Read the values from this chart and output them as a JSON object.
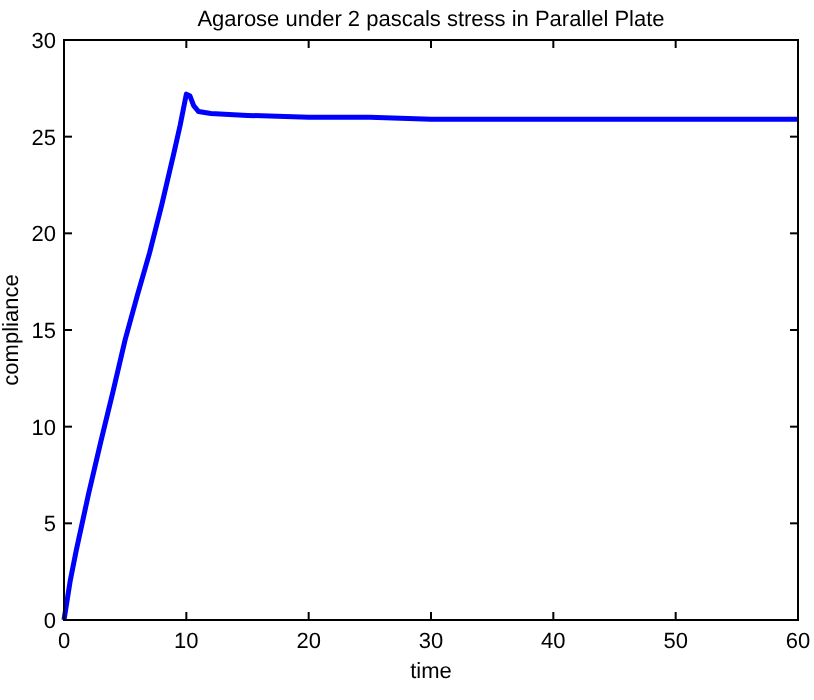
{
  "chart_data": {
    "type": "line",
    "title": "Agarose under 2 pascals stress in Parallel Plate",
    "xlabel": "time",
    "ylabel": "compliance",
    "x": [
      0,
      0.5,
      1,
      2,
      3,
      4,
      5,
      6,
      7,
      8,
      9,
      9.5,
      10,
      10.3,
      10.6,
      11,
      12,
      15,
      20,
      25,
      30,
      40,
      50,
      60
    ],
    "series": [
      {
        "color": "#0000ff",
        "values": [
          0,
          2,
          3.6,
          6.5,
          9.2,
          11.8,
          14.5,
          16.8,
          19,
          21.5,
          24.2,
          25.6,
          27.2,
          27.1,
          26.6,
          26.3,
          26.2,
          26.1,
          26,
          26,
          25.9,
          25.9,
          25.9,
          25.9
        ]
      }
    ],
    "xlim": [
      0,
      60
    ],
    "ylim": [
      0,
      30
    ],
    "xticks": [
      0,
      10,
      20,
      30,
      40,
      50,
      60
    ],
    "yticks": [
      0,
      5,
      10,
      15,
      20,
      25,
      30
    ],
    "grid": false,
    "line_style": "solid",
    "marker": "none"
  }
}
